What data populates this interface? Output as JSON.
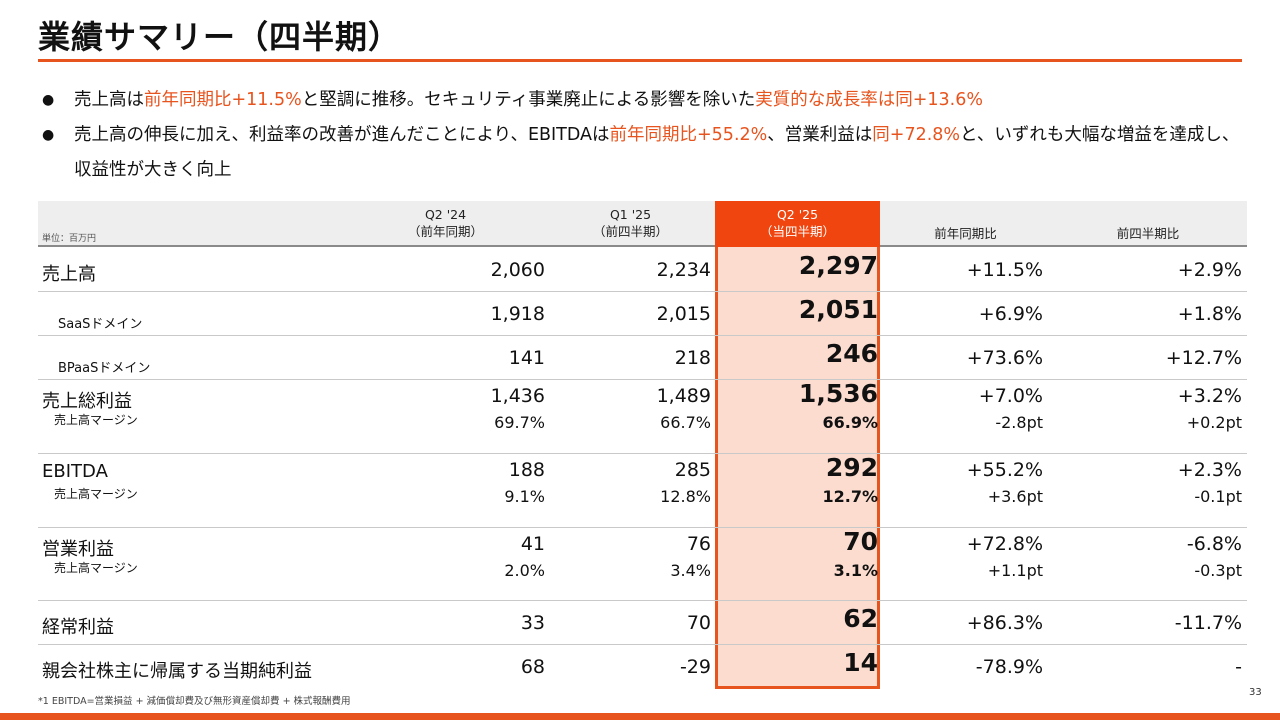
{
  "title": "業績サマリー（四半期）",
  "bullets": [
    [
      {
        "t": "売上高は",
        "hl": false
      },
      {
        "t": "前年同期比+11.5%",
        "hl": true
      },
      {
        "t": "と堅調に推移。セキュリティ事業廃止による影響を除いた",
        "hl": false
      },
      {
        "t": "実質的な成長率は同+13.6%",
        "hl": true
      }
    ],
    [
      {
        "t": "売上高の伸長に加え、利益率の改善が進んだことにより、EBITDAは",
        "hl": false
      },
      {
        "t": "前年同期比+55.2%",
        "hl": true
      },
      {
        "t": "、営業利益は",
        "hl": false
      },
      {
        "t": "同+72.8%",
        "hl": true
      },
      {
        "t": "と、いずれも大幅な増益を達成し、収益性が大きく向上",
        "hl": false
      }
    ]
  ],
  "table": {
    "unit": "単位：百万円",
    "headers": [
      {
        "l1": "Q2 '24",
        "l2": "（前年同期）"
      },
      {
        "l1": "Q1 '25",
        "l2": "（前四半期）"
      },
      {
        "l1": "Q2 '25",
        "l2": "（当四半期）"
      },
      {
        "l1": "前年同期比",
        "l2": ""
      },
      {
        "l1": "前四半期比",
        "l2": ""
      }
    ],
    "rows": [
      {
        "label": "売上高",
        "kind": "main",
        "values": [
          "2,060",
          "2,234",
          "2,297",
          "+11.5%",
          "+2.9%"
        ]
      },
      {
        "label": "SaaSドメイン",
        "kind": "sub",
        "values": [
          "1,918",
          "2,015",
          "2,051",
          "+6.9%",
          "+1.8%"
        ]
      },
      {
        "label": "BPaaSドメイン",
        "kind": "sub",
        "values": [
          "141",
          "218",
          "246",
          "+73.6%",
          "+12.7%"
        ]
      },
      {
        "label": "売上総利益",
        "kind": "main",
        "values": [
          "1,436",
          "1,489",
          "1,536",
          "+7.0%",
          "+3.2%"
        ]
      },
      {
        "label": "売上高マージン",
        "kind": "margin",
        "values": [
          "69.7%",
          "66.7%",
          "66.9%",
          "-2.8pt",
          "+0.2pt"
        ]
      },
      {
        "label": "EBITDA",
        "kind": "main",
        "values": [
          "188",
          "285",
          "292",
          "+55.2%",
          "+2.3%"
        ]
      },
      {
        "label": "売上高マージン",
        "kind": "margin",
        "values": [
          "9.1%",
          "12.8%",
          "12.7%",
          "+3.6pt",
          "-0.1pt"
        ]
      },
      {
        "label": "営業利益",
        "kind": "main",
        "values": [
          "41",
          "76",
          "70",
          "+72.8%",
          "-6.8%"
        ]
      },
      {
        "label": "売上高マージン",
        "kind": "margin",
        "values": [
          "2.0%",
          "3.4%",
          "3.1%",
          "+1.1pt",
          "-0.3pt"
        ]
      },
      {
        "label": "経常利益",
        "kind": "main",
        "values": [
          "33",
          "70",
          "62",
          "+86.3%",
          "-11.7%"
        ]
      },
      {
        "label": "親会社株主に帰属する当期純利益",
        "kind": "main",
        "values": [
          "68",
          "-29",
          "14",
          "-78.9%",
          "-"
        ]
      }
    ]
  },
  "footnote": "*1 EBITDA=営業損益 + 減価償却費及び無形資産償却費 + 株式報酬費用",
  "page_number": "33",
  "colors": {
    "accent": "#e8541e",
    "highlight_fill": "#fbdccf",
    "header_fill": "#eeeeee"
  }
}
